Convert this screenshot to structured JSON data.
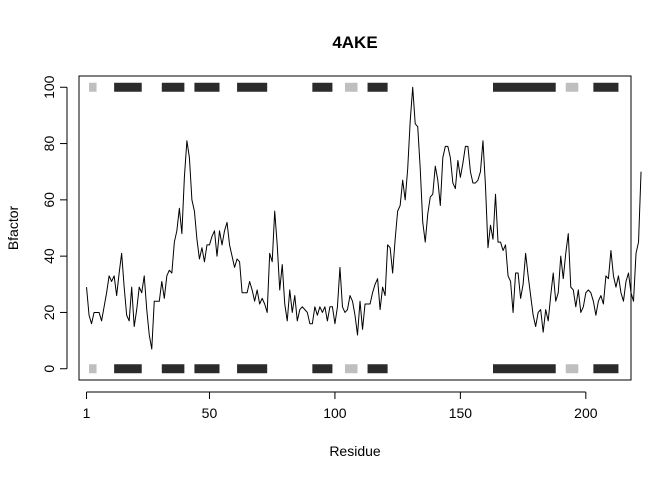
{
  "chart_data": {
    "type": "line",
    "title": "4AKE",
    "xlabel": "Residue",
    "ylabel": "Bfactor",
    "xlim": [
      -2,
      218
    ],
    "ylim": [
      -4,
      104
    ],
    "xticks": [
      1,
      50,
      100,
      150,
      200
    ],
    "yticks": [
      0,
      20,
      40,
      60,
      80,
      100
    ],
    "grid": false,
    "line_color": "#000000",
    "x_start": 1,
    "y": [
      29,
      19,
      16,
      20,
      20,
      20,
      17,
      22,
      27,
      33,
      31,
      33,
      26,
      34,
      41,
      29,
      19,
      17,
      29,
      15,
      21,
      29,
      27,
      33,
      21,
      12,
      7,
      24,
      24,
      24,
      31,
      25,
      33,
      35,
      34,
      45,
      49,
      57,
      48,
      68,
      81,
      75,
      60,
      56,
      46,
      39,
      43,
      38,
      44,
      44,
      47,
      49,
      40,
      49,
      44,
      49,
      52,
      44,
      40,
      36,
      39,
      38,
      27,
      27,
      27,
      31,
      28,
      24,
      28,
      23,
      25,
      23,
      20,
      41,
      38,
      56,
      44,
      28,
      37,
      23,
      17,
      28,
      20,
      26,
      17,
      21,
      22,
      21,
      20,
      16,
      16,
      22,
      19,
      22,
      20,
      22,
      17,
      22,
      22,
      16,
      22,
      36,
      22,
      20,
      21,
      26,
      24,
      19,
      12,
      24,
      14,
      23,
      23,
      23,
      27,
      30,
      32,
      21,
      29,
      26,
      44,
      43,
      34,
      46,
      56,
      58,
      67,
      60,
      71,
      88,
      100,
      87,
      86,
      71,
      52,
      45,
      55,
      61,
      62,
      72,
      67,
      58,
      75,
      79,
      79,
      75,
      66,
      64,
      74,
      68,
      73,
      79,
      79,
      70,
      66,
      66,
      67,
      70,
      81,
      65,
      43,
      51,
      46,
      62,
      45,
      45,
      42,
      44,
      33,
      31,
      20,
      34,
      34,
      25,
      30,
      41,
      33,
      26,
      19,
      15,
      20,
      21,
      13,
      21,
      17,
      26,
      34,
      24,
      27,
      40,
      32,
      41,
      48,
      29,
      28,
      22,
      28,
      20,
      22,
      27,
      28,
      27,
      24,
      19,
      24,
      26,
      23,
      33,
      32,
      42,
      33,
      29,
      33,
      27,
      24,
      31,
      34,
      27,
      24,
      41,
      45,
      70
    ]
  },
  "sse_tracks": {
    "description_colors": {
      "helix": "#2b2b2b",
      "strand": "#bfbfbf"
    },
    "segments": [
      {
        "type": "strand",
        "start": 2,
        "end": 5
      },
      {
        "type": "helix",
        "start": 12,
        "end": 23
      },
      {
        "type": "helix",
        "start": 31,
        "end": 40
      },
      {
        "type": "helix",
        "start": 44,
        "end": 54
      },
      {
        "type": "helix",
        "start": 61,
        "end": 73
      },
      {
        "type": "helix",
        "start": 91,
        "end": 99
      },
      {
        "type": "strand",
        "start": 104,
        "end": 109
      },
      {
        "type": "helix",
        "start": 113,
        "end": 121
      },
      {
        "type": "helix",
        "start": 163,
        "end": 188
      },
      {
        "type": "strand",
        "start": 192,
        "end": 197
      },
      {
        "type": "helix",
        "start": 203,
        "end": 213
      }
    ]
  }
}
